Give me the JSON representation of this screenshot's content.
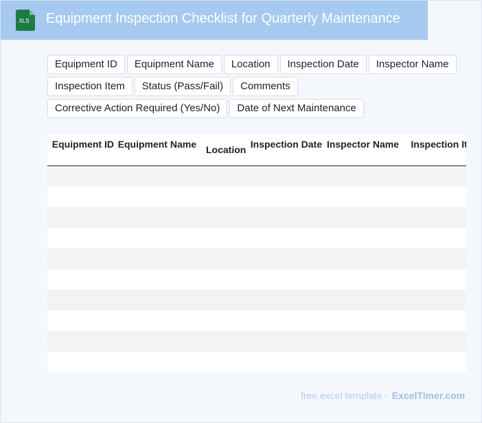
{
  "header": {
    "icon_label": "XLS",
    "title": "Equipment Inspection Checklist for Quarterly Maintenance"
  },
  "tags": [
    "Equipment ID",
    "Equipment Name",
    "Location",
    "Inspection Date",
    "Inspector Name",
    "Inspection Item",
    "Status (Pass/Fail)",
    "Comments",
    "Corrective Action Required (Yes/No)",
    "Date of Next Maintenance"
  ],
  "table": {
    "headers": [
      "Equipment ID",
      "Equipment Name",
      "Location",
      "Inspection Date",
      "Inspector Name",
      "Inspection Item"
    ]
  },
  "footer": {
    "text": "free excel template -",
    "link": "ExcelTimer.com"
  }
}
